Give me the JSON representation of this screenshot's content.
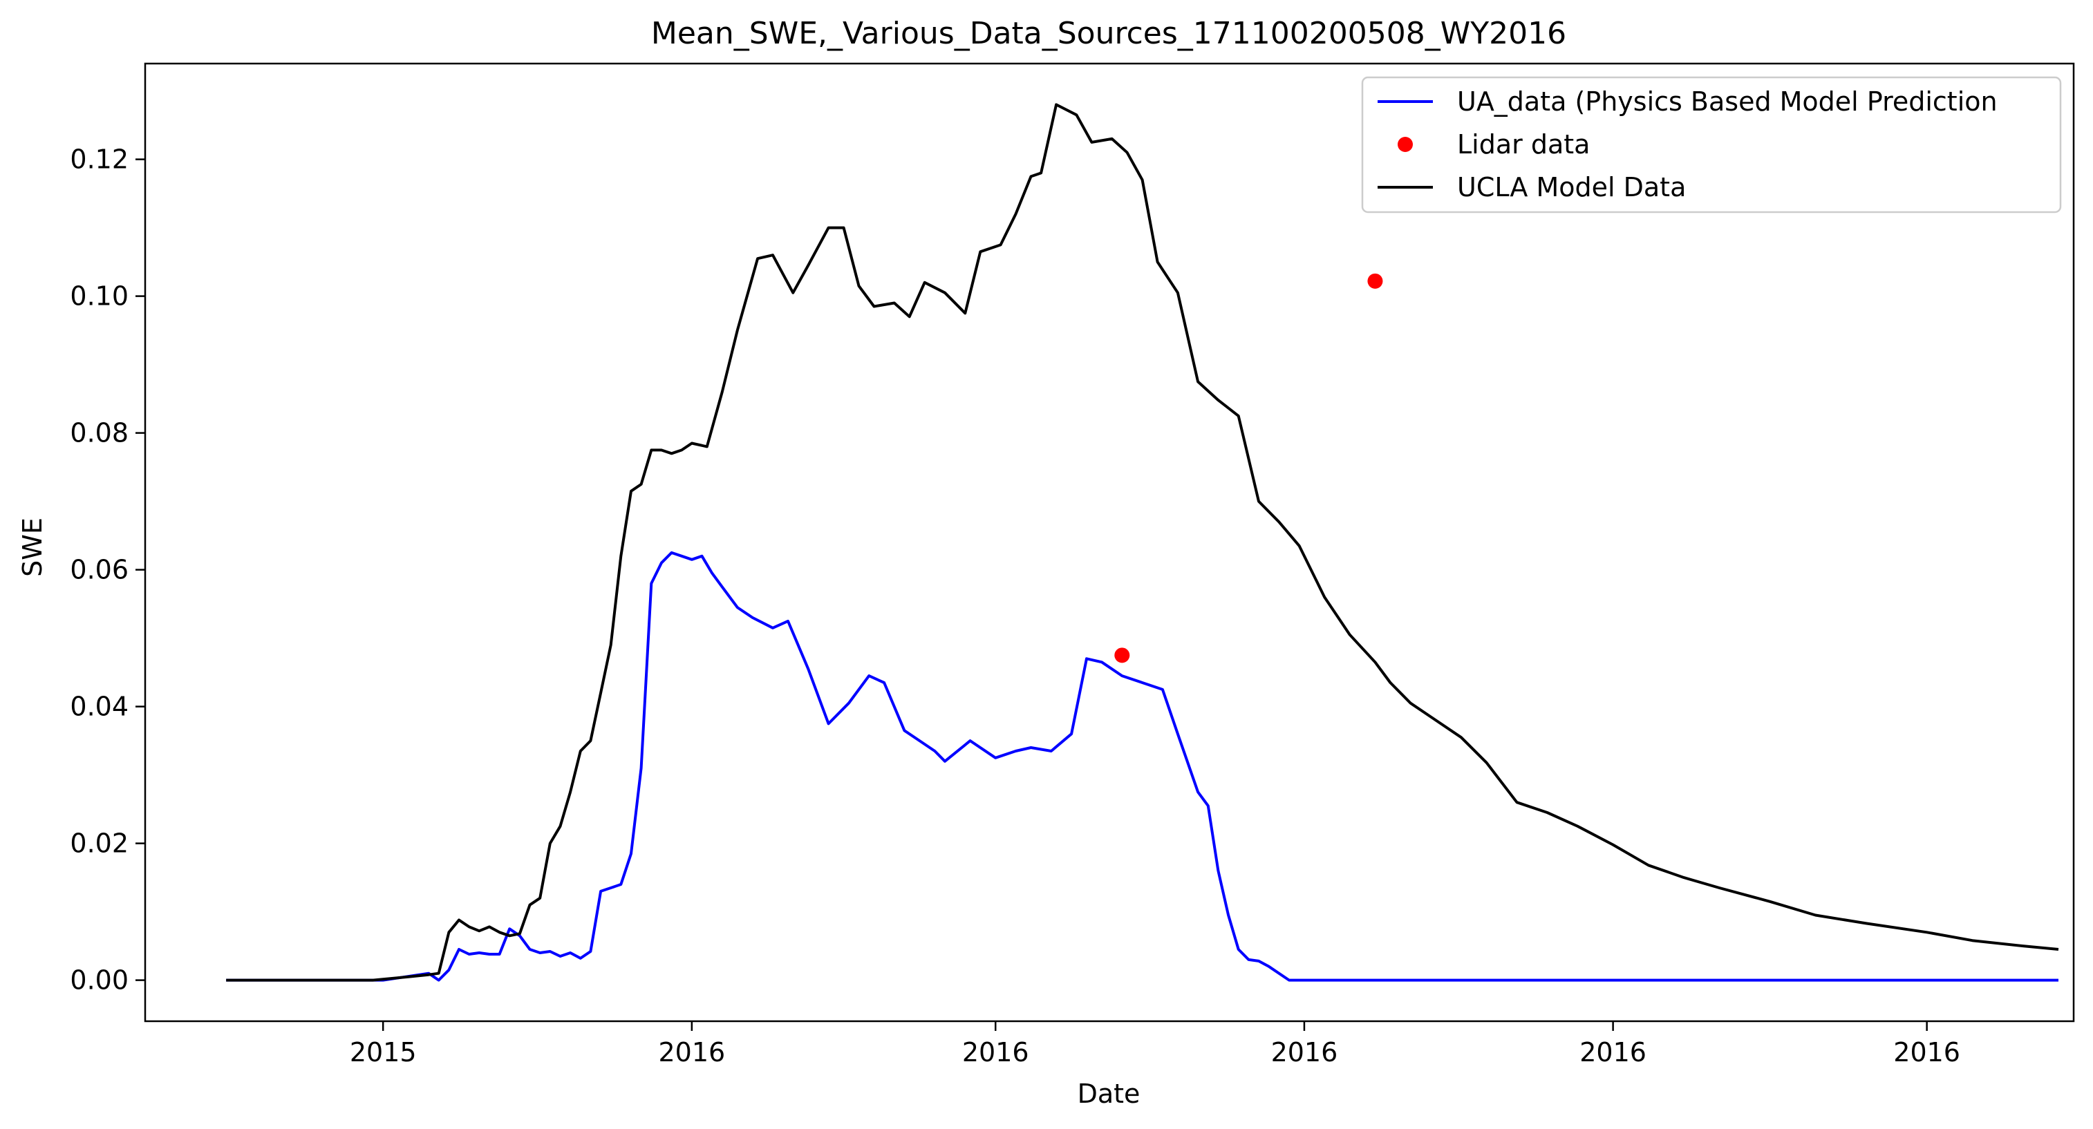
{
  "chart_data": {
    "type": "line",
    "title": "Mean_SWE,_Various_Data_Sources_171100200508_WY2016",
    "xlabel": "Date",
    "ylabel": "SWE",
    "x_axis": {
      "kind": "date",
      "range": [
        "2015-09-15",
        "2016-09-30"
      ],
      "ticks": [
        {
          "date": "2015-11-01",
          "label": "2015"
        },
        {
          "date": "2016-01-01",
          "label": "2016"
        },
        {
          "date": "2016-03-01",
          "label": "2016"
        },
        {
          "date": "2016-05-01",
          "label": "2016"
        },
        {
          "date": "2016-07-01",
          "label": "2016"
        },
        {
          "date": "2016-09-01",
          "label": "2016"
        }
      ]
    },
    "ylim": [
      -0.006,
      0.134
    ],
    "yticks": [
      {
        "value": 0.0,
        "label": "0.00"
      },
      {
        "value": 0.02,
        "label": "0.02"
      },
      {
        "value": 0.04,
        "label": "0.04"
      },
      {
        "value": 0.06,
        "label": "0.06"
      },
      {
        "value": 0.08,
        "label": "0.08"
      },
      {
        "value": 0.1,
        "label": "0.10"
      },
      {
        "value": 0.12,
        "label": "0.12"
      }
    ],
    "grid": false,
    "legend_position": "top-right",
    "series": [
      {
        "name": "UA_data (Physics Based Model Prediction",
        "kind": "line",
        "color": "#0000ff",
        "x": [
          "2015-10-01",
          "2015-11-01",
          "2015-11-10",
          "2015-11-12",
          "2015-11-14",
          "2015-11-16",
          "2015-11-18",
          "2015-11-20",
          "2015-11-22",
          "2015-11-24",
          "2015-11-26",
          "2015-11-28",
          "2015-11-30",
          "2015-12-02",
          "2015-12-04",
          "2015-12-06",
          "2015-12-08",
          "2015-12-10",
          "2015-12-12",
          "2015-12-14",
          "2015-12-16",
          "2015-12-18",
          "2015-12-20",
          "2015-12-22",
          "2015-12-24",
          "2015-12-26",
          "2015-12-28",
          "2015-12-30",
          "2016-01-01",
          "2016-01-03",
          "2016-01-05",
          "2016-01-07",
          "2016-01-10",
          "2016-01-13",
          "2016-01-17",
          "2016-01-20",
          "2016-01-24",
          "2016-01-28",
          "2016-02-01",
          "2016-02-05",
          "2016-02-08",
          "2016-02-12",
          "2016-02-15",
          "2016-02-18",
          "2016-02-20",
          "2016-02-25",
          "2016-03-01",
          "2016-03-05",
          "2016-03-08",
          "2016-03-12",
          "2016-03-16",
          "2016-03-19",
          "2016-03-22",
          "2016-03-26",
          "2016-03-30",
          "2016-04-03",
          "2016-04-06",
          "2016-04-10",
          "2016-04-12",
          "2016-04-14",
          "2016-04-16",
          "2016-04-18",
          "2016-04-20",
          "2016-04-22",
          "2016-04-24",
          "2016-04-28",
          "2016-05-04",
          "2016-05-10",
          "2016-06-01",
          "2016-07-01",
          "2016-08-01",
          "2016-09-27"
        ],
        "values": [
          0.0,
          0.0,
          0.001,
          0.0,
          0.0015,
          0.0045,
          0.0038,
          0.004,
          0.0038,
          0.0038,
          0.0075,
          0.0065,
          0.0045,
          0.004,
          0.0042,
          0.0035,
          0.004,
          0.0032,
          0.0042,
          0.013,
          0.0135,
          0.014,
          0.0185,
          0.031,
          0.058,
          0.061,
          0.0625,
          0.062,
          0.0615,
          0.062,
          0.0595,
          0.0575,
          0.0545,
          0.053,
          0.0515,
          0.0525,
          0.0455,
          0.0375,
          0.0405,
          0.0445,
          0.0435,
          0.0365,
          0.035,
          0.0335,
          0.032,
          0.035,
          0.0325,
          0.0335,
          0.034,
          0.0335,
          0.036,
          0.047,
          0.0465,
          0.0445,
          0.0435,
          0.0425,
          0.036,
          0.0275,
          0.0255,
          0.016,
          0.0095,
          0.0045,
          0.003,
          0.0028,
          0.002,
          0.0,
          0.0,
          0.0,
          0.0,
          0.0,
          0.0,
          0.0
        ]
      },
      {
        "name": "Lidar data",
        "kind": "scatter",
        "color": "#ff0000",
        "x": [
          "2016-03-26",
          "2016-05-15"
        ],
        "values": [
          0.0475,
          0.1022
        ]
      },
      {
        "name": "UCLA Model Data",
        "kind": "line",
        "color": "#000000",
        "x": [
          "2015-10-01",
          "2015-10-30",
          "2015-11-06",
          "2015-11-10",
          "2015-11-12",
          "2015-11-14",
          "2015-11-16",
          "2015-11-18",
          "2015-11-20",
          "2015-11-22",
          "2015-11-24",
          "2015-11-26",
          "2015-11-28",
          "2015-11-30",
          "2015-12-02",
          "2015-12-04",
          "2015-12-06",
          "2015-12-08",
          "2015-12-10",
          "2015-12-12",
          "2015-12-14",
          "2015-12-16",
          "2015-12-18",
          "2015-12-20",
          "2015-12-22",
          "2015-12-24",
          "2015-12-26",
          "2015-12-28",
          "2015-12-30",
          "2016-01-01",
          "2016-01-04",
          "2016-01-07",
          "2016-01-10",
          "2016-01-14",
          "2016-01-17",
          "2016-01-21",
          "2016-01-24",
          "2016-01-28",
          "2016-01-31",
          "2016-02-03",
          "2016-02-06",
          "2016-02-10",
          "2016-02-13",
          "2016-02-16",
          "2016-02-20",
          "2016-02-24",
          "2016-02-27",
          "2016-03-02",
          "2016-03-05",
          "2016-03-08",
          "2016-03-10",
          "2016-03-13",
          "2016-03-17",
          "2016-03-20",
          "2016-03-24",
          "2016-03-27",
          "2016-03-30",
          "2016-04-02",
          "2016-04-06",
          "2016-04-10",
          "2016-04-14",
          "2016-04-18",
          "2016-04-22",
          "2016-04-26",
          "2016-04-30",
          "2016-05-05",
          "2016-05-10",
          "2016-05-15",
          "2016-05-18",
          "2016-05-22",
          "2016-05-26",
          "2016-06-01",
          "2016-06-06",
          "2016-06-12",
          "2016-06-18",
          "2016-06-24",
          "2016-07-01",
          "2016-07-08",
          "2016-07-15",
          "2016-07-22",
          "2016-08-01",
          "2016-08-10",
          "2016-08-20",
          "2016-09-01",
          "2016-09-10",
          "2016-09-20",
          "2016-09-27"
        ],
        "values": [
          0.0,
          0.0,
          0.0005,
          0.0008,
          0.001,
          0.007,
          0.0088,
          0.0078,
          0.0072,
          0.0078,
          0.007,
          0.0065,
          0.0068,
          0.011,
          0.012,
          0.02,
          0.0225,
          0.0275,
          0.0335,
          0.035,
          0.042,
          0.049,
          0.062,
          0.0715,
          0.0725,
          0.0775,
          0.0775,
          0.077,
          0.0775,
          0.0785,
          0.078,
          0.086,
          0.095,
          0.1055,
          0.106,
          0.1005,
          0.1045,
          0.11,
          0.11,
          0.1015,
          0.0985,
          0.099,
          0.097,
          0.102,
          0.1005,
          0.0975,
          0.1065,
          0.1075,
          0.112,
          0.1175,
          0.118,
          0.128,
          0.1265,
          0.1225,
          0.123,
          0.121,
          0.117,
          0.105,
          0.1005,
          0.0875,
          0.0848,
          0.0825,
          0.07,
          0.067,
          0.0635,
          0.056,
          0.0505,
          0.0465,
          0.0435,
          0.0405,
          0.0385,
          0.0355,
          0.0318,
          0.026,
          0.0245,
          0.0225,
          0.0198,
          0.0168,
          0.015,
          0.0135,
          0.0115,
          0.0095,
          0.0083,
          0.007,
          0.0058,
          0.005,
          0.0045
        ]
      }
    ]
  }
}
